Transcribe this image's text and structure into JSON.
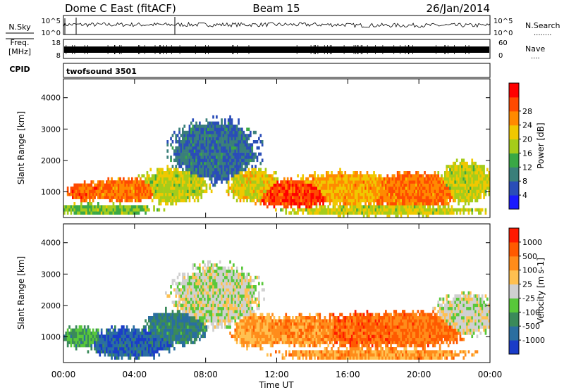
{
  "header": {
    "station": "Dome C East (fitACF)",
    "beam": "Beam 15",
    "date": "26/Jan/2014"
  },
  "noise_panel": {
    "left_label": "N.Sky",
    "left_ticks": [
      "10^5",
      "10^0"
    ],
    "right_ticks": [
      "10^5",
      "10^0"
    ],
    "right_label": "N.Search",
    "right_legend": "........"
  },
  "freq_panel": {
    "label_line1": "Freq.",
    "label_line2": "[MHz]",
    "left_ticks": [
      "18",
      "8"
    ],
    "right_ticks": [
      "60",
      "0"
    ],
    "right_label": "Nave",
    "right_legend": "...."
  },
  "cpid_panel": {
    "label": "CPID",
    "value": "twofsound 3501"
  },
  "chart_data": [
    {
      "type": "heatmap",
      "quantity": "Power",
      "ylabel": "Slant Range [km]",
      "y_ticks": [
        "1000",
        "2000",
        "3000",
        "4000"
      ],
      "ylim": [
        180,
        4600
      ],
      "colorbar_label": "Power [dB]",
      "colorbar_ticks": [
        "4",
        "8",
        "12",
        "16",
        "20",
        "24",
        "28"
      ],
      "colors": [
        "#1a1aff",
        "#2a4db8",
        "#3a7f7a",
        "#3aa845",
        "#a5cc1a",
        "#f0c800",
        "#ff8a00",
        "#ff4a00",
        "#ff0000"
      ],
      "clumps": [
        {
          "t": 1.2,
          "r": 1000,
          "w": 0.9,
          "h": 250,
          "v": 0.85
        },
        {
          "t": 3.6,
          "r": 1050,
          "w": 2.0,
          "h": 350,
          "v": 0.8
        },
        {
          "t": 6.2,
          "r": 1200,
          "w": 1.8,
          "h": 500,
          "v": 0.55
        },
        {
          "t": 8.5,
          "r": 2300,
          "w": 2.2,
          "h": 900,
          "v": 0.2
        },
        {
          "t": 10.7,
          "r": 1200,
          "w": 1.3,
          "h": 500,
          "v": 0.6
        },
        {
          "t": 13.0,
          "r": 950,
          "w": 2.5,
          "h": 400,
          "v": 0.9
        },
        {
          "t": 16.2,
          "r": 1100,
          "w": 3.0,
          "h": 500,
          "v": 0.7
        },
        {
          "t": 19.5,
          "r": 1050,
          "w": 3.0,
          "h": 500,
          "v": 0.8
        },
        {
          "t": 22.6,
          "r": 1300,
          "w": 1.4,
          "h": 600,
          "v": 0.55
        },
        {
          "t": 18.0,
          "r": 400,
          "w": 5.0,
          "h": 150,
          "v": 0.55
        },
        {
          "t": 2.0,
          "r": 450,
          "w": 3.0,
          "h": 150,
          "v": 0.45
        }
      ]
    },
    {
      "type": "heatmap",
      "quantity": "Velocity",
      "ylabel": "Slant Range [km]",
      "y_ticks": [
        "1000",
        "2000",
        "3000",
        "4000"
      ],
      "ylim": [
        180,
        4600
      ],
      "colorbar_label": "Velocity [m s-1]",
      "colorbar_ticks": [
        "1000",
        "500",
        "100",
        "25",
        "-25",
        "-100",
        "-500",
        "-1000"
      ],
      "colors": [
        "#1a3cc8",
        "#2a6ea0",
        "#3a8a5a",
        "#58c83a",
        "#d0d0d0",
        "#ffc050",
        "#ff8c1a",
        "#ff5a00",
        "#ff1a00"
      ],
      "clumps": [
        {
          "t": 1.0,
          "r": 1000,
          "w": 1.0,
          "h": 300,
          "v": 0.3
        },
        {
          "t": 3.8,
          "r": 800,
          "w": 2.2,
          "h": 450,
          "v": 0.1
        },
        {
          "t": 6.3,
          "r": 1300,
          "w": 1.6,
          "h": 500,
          "v": 0.2
        },
        {
          "t": 8.6,
          "r": 2300,
          "w": 2.2,
          "h": 900,
          "v": 0.5
        },
        {
          "t": 10.9,
          "r": 1200,
          "w": 1.3,
          "h": 500,
          "v": 0.7
        },
        {
          "t": 13.5,
          "r": 1200,
          "w": 2.8,
          "h": 450,
          "v": 0.75
        },
        {
          "t": 17.0,
          "r": 1200,
          "w": 2.8,
          "h": 500,
          "v": 0.85
        },
        {
          "t": 19.5,
          "r": 1250,
          "w": 3.0,
          "h": 500,
          "v": 0.82
        },
        {
          "t": 22.6,
          "r": 1700,
          "w": 1.5,
          "h": 600,
          "v": 0.5
        },
        {
          "t": 17.5,
          "r": 450,
          "w": 5.0,
          "h": 170,
          "v": 0.72
        }
      ]
    }
  ],
  "x_axis": {
    "label": "Time UT",
    "ticks": [
      "00:00",
      "04:00",
      "08:00",
      "12:00",
      "16:00",
      "20:00",
      "00:00"
    ]
  }
}
